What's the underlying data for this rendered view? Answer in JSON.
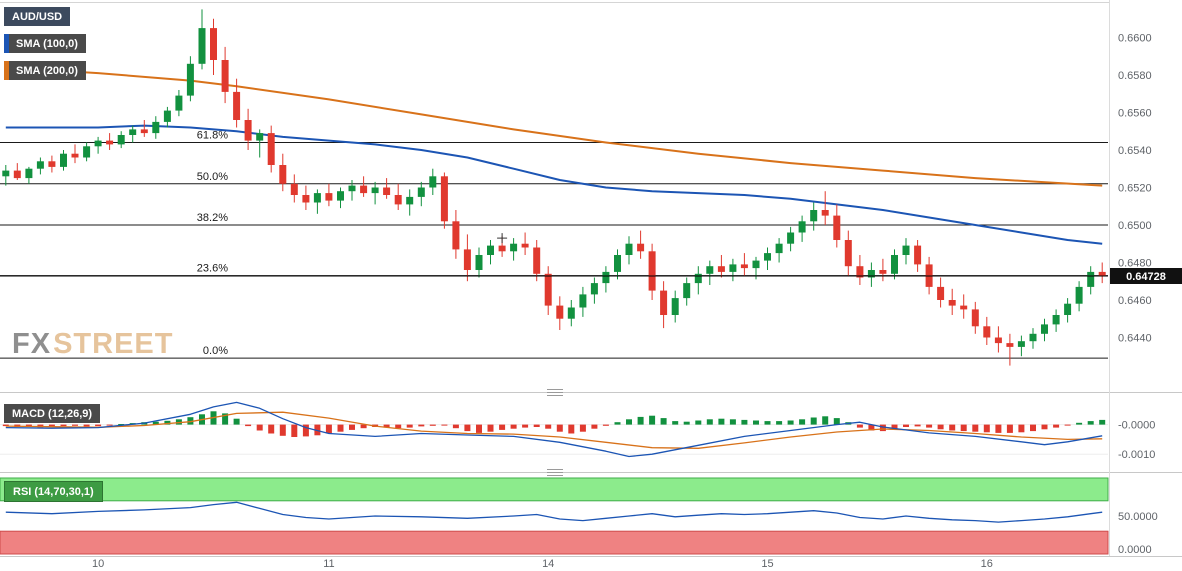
{
  "header": {
    "symbol": "AUD/USD",
    "sma100_label": "SMA (100,0)",
    "sma200_label": "SMA (200,0)"
  },
  "panels": {
    "macd": {
      "label": "MACD (12,26,9)"
    },
    "rsi": {
      "label": "RSI (14,70,30,1)"
    }
  },
  "watermark": {
    "fx": "FX",
    "street": "STREET"
  },
  "colors": {
    "candle_up": "#12913f",
    "candle_down": "#e0392e",
    "sma100": "#1c55b4",
    "sma200": "#d8721a",
    "macd_line": "#1c55b4",
    "signal_line": "#d8721a",
    "rsi_line": "#1c55b4",
    "rsi_upper_band": "#8ceb8c",
    "rsi_upper_border": "#3fae49",
    "rsi_lower_band": "#ef8282",
    "rsi_lower_border": "#cf4b4b",
    "fib_line": "#1a1a1a",
    "price_line": "#000000",
    "badge_bg": "#111111",
    "badge_text": "#ffffff",
    "axis_text": "#5f6368",
    "chip_bg": "#4a4a4a",
    "symbol_chip_bg": "#3c4a5e",
    "rsi_chip_bg": "#3d9b43",
    "watermark_fx": "#8f8f8f",
    "watermark_street": "#e6c49c"
  },
  "chart_data": [
    {
      "type": "candlestick",
      "title": "AUD/USD",
      "xlabel": "",
      "ylabel": "",
      "y_range": [
        0.6412,
        0.662
      ],
      "y_ticks": [
        "0.6600",
        "0.6580",
        "0.6560",
        "0.6540",
        "0.6520",
        "0.6500",
        "0.6480",
        "0.6460",
        "0.6440"
      ],
      "x_labels": [
        {
          "label": "10",
          "index": 8
        },
        {
          "label": "11",
          "index": 28
        },
        {
          "label": "14",
          "index": 47
        },
        {
          "label": "15",
          "index": 66
        },
        {
          "label": "16",
          "index": 85
        }
      ],
      "last_price": 0.64728,
      "last_price_label": "0.64728",
      "crosshair": {
        "index": 43,
        "price": 0.6493
      },
      "fib_levels": [
        {
          "label": "61.8%",
          "price": 0.6544
        },
        {
          "label": "50.0%",
          "price": 0.6522
        },
        {
          "label": "38.2%",
          "price": 0.65
        },
        {
          "label": "23.6%",
          "price": 0.6473
        },
        {
          "label": "0.0%",
          "price": 0.6429
        }
      ],
      "sma100": [
        [
          0,
          0.6552
        ],
        [
          8,
          0.6552
        ],
        [
          12,
          0.6553
        ],
        [
          16,
          0.6552
        ],
        [
          20,
          0.655
        ],
        [
          24,
          0.6547
        ],
        [
          28,
          0.6545
        ],
        [
          32,
          0.6543
        ],
        [
          36,
          0.654
        ],
        [
          40,
          0.6536
        ],
        [
          44,
          0.653
        ],
        [
          48,
          0.6524
        ],
        [
          52,
          0.652
        ],
        [
          56,
          0.6518
        ],
        [
          60,
          0.6517
        ],
        [
          64,
          0.6516
        ],
        [
          68,
          0.6514
        ],
        [
          72,
          0.6511
        ],
        [
          76,
          0.6508
        ],
        [
          80,
          0.6504
        ],
        [
          84,
          0.65
        ],
        [
          88,
          0.6496
        ],
        [
          92,
          0.6492
        ],
        [
          95,
          0.649
        ]
      ],
      "sma200": [
        [
          0,
          0.6584
        ],
        [
          8,
          0.6581
        ],
        [
          16,
          0.6577
        ],
        [
          20,
          0.6574
        ],
        [
          28,
          0.6567
        ],
        [
          36,
          0.6559
        ],
        [
          44,
          0.6551
        ],
        [
          52,
          0.6544
        ],
        [
          60,
          0.6538
        ],
        [
          68,
          0.6533
        ],
        [
          76,
          0.6529
        ],
        [
          84,
          0.6525
        ],
        [
          95,
          0.6521
        ]
      ],
      "candles": [
        [
          0.6526,
          0.6532,
          0.6521,
          0.6529
        ],
        [
          0.6529,
          0.6533,
          0.6524,
          0.6525
        ],
        [
          0.6525,
          0.6531,
          0.6522,
          0.653
        ],
        [
          0.653,
          0.6536,
          0.6527,
          0.6534
        ],
        [
          0.6534,
          0.6537,
          0.6528,
          0.6531
        ],
        [
          0.6531,
          0.654,
          0.6529,
          0.6538
        ],
        [
          0.6538,
          0.6543,
          0.6533,
          0.6536
        ],
        [
          0.6536,
          0.6544,
          0.6534,
          0.6542
        ],
        [
          0.6542,
          0.6547,
          0.6538,
          0.6545
        ],
        [
          0.6545,
          0.6549,
          0.654,
          0.6543
        ],
        [
          0.6543,
          0.655,
          0.6541,
          0.6548
        ],
        [
          0.6548,
          0.6553,
          0.6544,
          0.6551
        ],
        [
          0.6551,
          0.6556,
          0.6547,
          0.6549
        ],
        [
          0.6549,
          0.6558,
          0.6546,
          0.6555
        ],
        [
          0.6555,
          0.6563,
          0.6552,
          0.6561
        ],
        [
          0.6561,
          0.6572,
          0.6558,
          0.6569
        ],
        [
          0.6569,
          0.659,
          0.6566,
          0.6586
        ],
        [
          0.6586,
          0.6615,
          0.6583,
          0.6605
        ],
        [
          0.6605,
          0.661,
          0.658,
          0.6588
        ],
        [
          0.6588,
          0.6595,
          0.6565,
          0.6571
        ],
        [
          0.6571,
          0.6578,
          0.6552,
          0.6556
        ],
        [
          0.6556,
          0.6562,
          0.654,
          0.6545
        ],
        [
          0.6545,
          0.6551,
          0.6536,
          0.6549
        ],
        [
          0.6549,
          0.6553,
          0.6528,
          0.6532
        ],
        [
          0.6532,
          0.6538,
          0.6518,
          0.6522
        ],
        [
          0.6522,
          0.6527,
          0.6512,
          0.6516
        ],
        [
          0.6516,
          0.6521,
          0.6508,
          0.6512
        ],
        [
          0.6512,
          0.6519,
          0.6506,
          0.6517
        ],
        [
          0.6517,
          0.6522,
          0.651,
          0.6513
        ],
        [
          0.6513,
          0.652,
          0.6509,
          0.6518
        ],
        [
          0.6518,
          0.6524,
          0.6513,
          0.6521
        ],
        [
          0.6521,
          0.6526,
          0.6515,
          0.6517
        ],
        [
          0.6517,
          0.6523,
          0.6511,
          0.652
        ],
        [
          0.652,
          0.6525,
          0.6514,
          0.6516
        ],
        [
          0.6516,
          0.6522,
          0.6508,
          0.6511
        ],
        [
          0.6511,
          0.6519,
          0.6505,
          0.6515
        ],
        [
          0.6515,
          0.6523,
          0.651,
          0.652
        ],
        [
          0.652,
          0.653,
          0.6516,
          0.6526
        ],
        [
          0.6526,
          0.6528,
          0.6498,
          0.6502
        ],
        [
          0.6502,
          0.6508,
          0.6482,
          0.6487
        ],
        [
          0.6487,
          0.6495,
          0.647,
          0.6476
        ],
        [
          0.6476,
          0.6488,
          0.6472,
          0.6484
        ],
        [
          0.6484,
          0.6492,
          0.6479,
          0.6489
        ],
        [
          0.6489,
          0.6494,
          0.6483,
          0.6486
        ],
        [
          0.6486,
          0.6493,
          0.6481,
          0.649
        ],
        [
          0.649,
          0.6496,
          0.6484,
          0.6488
        ],
        [
          0.6488,
          0.6492,
          0.647,
          0.6474
        ],
        [
          0.6474,
          0.6478,
          0.6452,
          0.6457
        ],
        [
          0.6457,
          0.6462,
          0.6444,
          0.645
        ],
        [
          0.645,
          0.646,
          0.6446,
          0.6456
        ],
        [
          0.6456,
          0.6467,
          0.6451,
          0.6463
        ],
        [
          0.6463,
          0.6472,
          0.6458,
          0.6469
        ],
        [
          0.6469,
          0.6478,
          0.6464,
          0.6475
        ],
        [
          0.6475,
          0.6487,
          0.6471,
          0.6484
        ],
        [
          0.6484,
          0.6494,
          0.6479,
          0.649
        ],
        [
          0.649,
          0.6497,
          0.6482,
          0.6486
        ],
        [
          0.6486,
          0.649,
          0.646,
          0.6465
        ],
        [
          0.6465,
          0.647,
          0.6445,
          0.6452
        ],
        [
          0.6452,
          0.6465,
          0.6448,
          0.6461
        ],
        [
          0.6461,
          0.6472,
          0.6457,
          0.6469
        ],
        [
          0.6469,
          0.6478,
          0.6463,
          0.6474
        ],
        [
          0.6474,
          0.6481,
          0.6468,
          0.6478
        ],
        [
          0.6478,
          0.6484,
          0.6472,
          0.6475
        ],
        [
          0.6475,
          0.6482,
          0.647,
          0.6479
        ],
        [
          0.6479,
          0.6485,
          0.6473,
          0.6477
        ],
        [
          0.6477,
          0.6483,
          0.6471,
          0.6481
        ],
        [
          0.6481,
          0.6488,
          0.6476,
          0.6485
        ],
        [
          0.6485,
          0.6493,
          0.648,
          0.649
        ],
        [
          0.649,
          0.6499,
          0.6486,
          0.6496
        ],
        [
          0.6496,
          0.6505,
          0.6491,
          0.6502
        ],
        [
          0.6502,
          0.6512,
          0.6497,
          0.6508
        ],
        [
          0.6508,
          0.6518,
          0.65,
          0.6505
        ],
        [
          0.6505,
          0.6511,
          0.6488,
          0.6492
        ],
        [
          0.6492,
          0.6497,
          0.6473,
          0.6478
        ],
        [
          0.6478,
          0.6484,
          0.6468,
          0.6472
        ],
        [
          0.6472,
          0.648,
          0.6467,
          0.6476
        ],
        [
          0.6476,
          0.6482,
          0.647,
          0.6474
        ],
        [
          0.6474,
          0.6487,
          0.6471,
          0.6484
        ],
        [
          0.6484,
          0.6493,
          0.6479,
          0.6489
        ],
        [
          0.6489,
          0.6492,
          0.6475,
          0.6479
        ],
        [
          0.6479,
          0.6483,
          0.6463,
          0.6467
        ],
        [
          0.6467,
          0.6472,
          0.6456,
          0.646
        ],
        [
          0.646,
          0.6466,
          0.6452,
          0.6457
        ],
        [
          0.6457,
          0.6463,
          0.645,
          0.6455
        ],
        [
          0.6455,
          0.6459,
          0.6442,
          0.6446
        ],
        [
          0.6446,
          0.6451,
          0.6436,
          0.644
        ],
        [
          0.644,
          0.6446,
          0.6432,
          0.6437
        ],
        [
          0.6437,
          0.6442,
          0.6425,
          0.6435
        ],
        [
          0.6435,
          0.6441,
          0.643,
          0.6438
        ],
        [
          0.6438,
          0.6445,
          0.6434,
          0.6442
        ],
        [
          0.6442,
          0.645,
          0.6438,
          0.6447
        ],
        [
          0.6447,
          0.6455,
          0.6443,
          0.6452
        ],
        [
          0.6452,
          0.6461,
          0.6448,
          0.6458
        ],
        [
          0.6458,
          0.647,
          0.6454,
          0.6467
        ],
        [
          0.6467,
          0.6478,
          0.6463,
          0.6475
        ],
        [
          0.6475,
          0.648,
          0.6469,
          0.64728
        ]
      ]
    },
    {
      "type": "bar",
      "name": "MACD (12,26,9)",
      "unit": 1e-05,
      "y_range": [
        -140,
        90
      ],
      "y_ticks": [
        {
          "label": "-0.0000",
          "value": 0
        },
        {
          "label": "-0.0010",
          "value": -100
        }
      ],
      "histogram": [
        -5,
        -8,
        -6,
        -9,
        -7,
        -5,
        -4,
        -6,
        -5,
        -3,
        2,
        5,
        8,
        10,
        13,
        18,
        25,
        35,
        45,
        38,
        20,
        -5,
        -20,
        -30,
        -38,
        -42,
        -40,
        -36,
        -30,
        -24,
        -18,
        -12,
        -8,
        -10,
        -12,
        -10,
        -6,
        -4,
        -2,
        -12,
        -22,
        -28,
        -24,
        -18,
        -14,
        -10,
        -8,
        -14,
        -24,
        -30,
        -24,
        -14,
        -4,
        8,
        18,
        26,
        30,
        22,
        12,
        10,
        14,
        18,
        20,
        18,
        16,
        14,
        12,
        12,
        14,
        18,
        24,
        28,
        22,
        8,
        -10,
        -20,
        -22,
        -16,
        -8,
        -6,
        -10,
        -16,
        -20,
        -22,
        -24,
        -26,
        -28,
        -28,
        -26,
        -22,
        -16,
        -10,
        -2,
        6,
        12,
        16
      ],
      "macd_line": [
        [
          0,
          -10
        ],
        [
          4,
          -12
        ],
        [
          8,
          -10
        ],
        [
          12,
          5
        ],
        [
          16,
          35
        ],
        [
          18,
          60
        ],
        [
          20,
          75
        ],
        [
          22,
          55
        ],
        [
          24,
          20
        ],
        [
          26,
          -10
        ],
        [
          28,
          -30
        ],
        [
          32,
          -40
        ],
        [
          36,
          -30
        ],
        [
          40,
          -35
        ],
        [
          44,
          -40
        ],
        [
          48,
          -60
        ],
        [
          52,
          -90
        ],
        [
          54,
          -108
        ],
        [
          56,
          -100
        ],
        [
          60,
          -70
        ],
        [
          64,
          -40
        ],
        [
          68,
          -20
        ],
        [
          72,
          0
        ],
        [
          74,
          8
        ],
        [
          76,
          -8
        ],
        [
          80,
          -28
        ],
        [
          84,
          -40
        ],
        [
          88,
          -58
        ],
        [
          90,
          -68
        ],
        [
          92,
          -58
        ],
        [
          95,
          -38
        ]
      ],
      "signal_line": [
        [
          0,
          -5
        ],
        [
          4,
          -7
        ],
        [
          8,
          -9
        ],
        [
          12,
          -3
        ],
        [
          16,
          10
        ],
        [
          20,
          38
        ],
        [
          24,
          42
        ],
        [
          28,
          22
        ],
        [
          32,
          -5
        ],
        [
          36,
          -22
        ],
        [
          40,
          -30
        ],
        [
          44,
          -32
        ],
        [
          48,
          -42
        ],
        [
          52,
          -60
        ],
        [
          56,
          -78
        ],
        [
          60,
          -80
        ],
        [
          64,
          -62
        ],
        [
          68,
          -42
        ],
        [
          72,
          -25
        ],
        [
          76,
          -15
        ],
        [
          80,
          -20
        ],
        [
          84,
          -30
        ],
        [
          88,
          -42
        ],
        [
          92,
          -50
        ],
        [
          95,
          -48
        ]
      ]
    },
    {
      "type": "line",
      "name": "RSI (14,70,30,1)",
      "y_range": [
        0,
        100
      ],
      "y_ticks": [
        {
          "label": "50.0000",
          "value": 50
        },
        {
          "label": "0.0000",
          "value": 0
        }
      ],
      "bands": [
        {
          "name": "overbought",
          "from": 70,
          "to": 100
        },
        {
          "name": "oversold",
          "from": 0,
          "to": 30
        }
      ],
      "values": [
        [
          0,
          55
        ],
        [
          4,
          53
        ],
        [
          8,
          56
        ],
        [
          12,
          58
        ],
        [
          16,
          61
        ],
        [
          18,
          65
        ],
        [
          20,
          68
        ],
        [
          22,
          60
        ],
        [
          24,
          52
        ],
        [
          26,
          48
        ],
        [
          28,
          46
        ],
        [
          32,
          50
        ],
        [
          36,
          49
        ],
        [
          40,
          47
        ],
        [
          44,
          50
        ],
        [
          46,
          52
        ],
        [
          48,
          46
        ],
        [
          50,
          44
        ],
        [
          52,
          47
        ],
        [
          54,
          50
        ],
        [
          56,
          53
        ],
        [
          58,
          49
        ],
        [
          60,
          51
        ],
        [
          62,
          53
        ],
        [
          64,
          52
        ],
        [
          66,
          53
        ],
        [
          68,
          55
        ],
        [
          70,
          57
        ],
        [
          72,
          54
        ],
        [
          74,
          48
        ],
        [
          76,
          46
        ],
        [
          78,
          50
        ],
        [
          80,
          47
        ],
        [
          82,
          45
        ],
        [
          84,
          44
        ],
        [
          86,
          42
        ],
        [
          88,
          44
        ],
        [
          90,
          46
        ],
        [
          92,
          49
        ],
        [
          94,
          53
        ],
        [
          95,
          55
        ]
      ]
    }
  ]
}
